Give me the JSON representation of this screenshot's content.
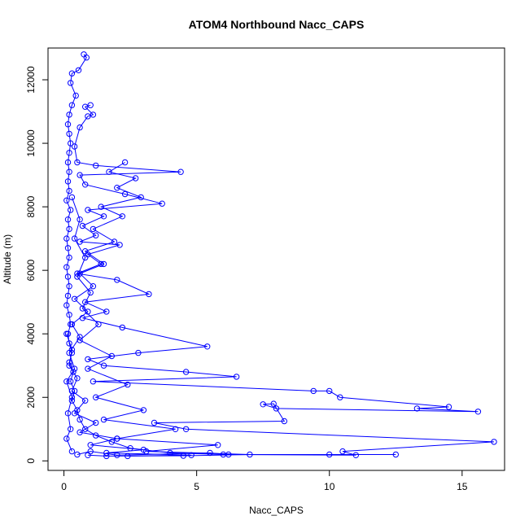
{
  "chart_data": {
    "type": "line",
    "title": "ATOM4 Northbound Nacc_CAPS",
    "xlabel": "Nacc_CAPS",
    "ylabel": "Altitude (m)",
    "xlim": [
      -0.6,
      16.6
    ],
    "ylim": [
      -300,
      13000
    ],
    "x_ticks": [
      0,
      5,
      10,
      15
    ],
    "y_ticks": [
      0,
      2000,
      4000,
      6000,
      8000,
      10000,
      12000
    ],
    "grid": false,
    "legend": "none",
    "marker": "open-circle",
    "color": "#0000ff",
    "series": [
      {
        "values": [
          [
            0.75,
            12800
          ],
          [
            0.85,
            12700
          ],
          [
            0.55,
            12300
          ],
          [
            0.3,
            12200
          ],
          [
            0.25,
            11900
          ],
          [
            0.45,
            11500
          ],
          [
            0.3,
            11200
          ],
          [
            0.2,
            10900
          ],
          [
            0.15,
            10600
          ],
          [
            0.2,
            10300
          ],
          [
            0.25,
            10000
          ],
          [
            0.2,
            9700
          ],
          [
            0.15,
            9400
          ],
          [
            0.2,
            9100
          ],
          [
            0.15,
            8800
          ],
          [
            0.2,
            8500
          ],
          [
            0.1,
            8200
          ],
          [
            0.25,
            7900
          ],
          [
            0.15,
            7600
          ],
          [
            0.2,
            7300
          ],
          [
            0.1,
            7000
          ],
          [
            0.15,
            6700
          ],
          [
            0.2,
            6400
          ],
          [
            0.1,
            6100
          ],
          [
            0.15,
            5800
          ],
          [
            0.2,
            5500
          ],
          [
            0.15,
            5200
          ],
          [
            0.1,
            4900
          ],
          [
            0.2,
            4600
          ],
          [
            0.25,
            4300
          ],
          [
            0.15,
            4000
          ],
          [
            0.2,
            3700
          ],
          [
            0.3,
            3400
          ],
          [
            0.2,
            3100
          ],
          [
            0.35,
            2800
          ],
          [
            0.25,
            2500
          ],
          [
            0.4,
            2200
          ],
          [
            0.3,
            1900
          ],
          [
            0.5,
            1600
          ],
          [
            0.6,
            1300
          ],
          [
            0.8,
            1000
          ],
          [
            1.2,
            800
          ],
          [
            1.8,
            600
          ],
          [
            2.5,
            400
          ],
          [
            4.0,
            250
          ],
          [
            6.0,
            200
          ],
          [
            10.0,
            200
          ],
          [
            12.5,
            200
          ]
        ]
      },
      {
        "values": [
          [
            1.0,
            11200
          ],
          [
            0.8,
            11150
          ],
          [
            1.1,
            10900
          ],
          [
            0.9,
            10850
          ],
          [
            0.6,
            10500
          ],
          [
            0.4,
            9900
          ],
          [
            0.5,
            9400
          ],
          [
            1.2,
            9300
          ],
          [
            4.4,
            9100
          ],
          [
            0.6,
            9000
          ],
          [
            0.8,
            8700
          ],
          [
            2.3,
            8400
          ],
          [
            3.7,
            8100
          ],
          [
            0.9,
            7900
          ],
          [
            1.5,
            7700
          ],
          [
            0.7,
            7400
          ],
          [
            1.2,
            7100
          ],
          [
            0.6,
            6900
          ],
          [
            2.1,
            6800
          ],
          [
            0.9,
            6500
          ],
          [
            1.4,
            6200
          ],
          [
            0.5,
            5900
          ],
          [
            2.0,
            5700
          ],
          [
            3.2,
            5250
          ],
          [
            0.8,
            5000
          ],
          [
            1.6,
            4700
          ],
          [
            0.7,
            4500
          ],
          [
            2.2,
            4200
          ],
          [
            5.4,
            3600
          ],
          [
            2.8,
            3400
          ],
          [
            0.9,
            3200
          ],
          [
            1.5,
            3000
          ],
          [
            4.6,
            2800
          ],
          [
            6.5,
            2650
          ],
          [
            1.1,
            2500
          ],
          [
            9.4,
            2200
          ],
          [
            10.0,
            2200
          ],
          [
            10.4,
            2000
          ],
          [
            14.5,
            1700
          ],
          [
            13.3,
            1650
          ],
          [
            15.6,
            1550
          ],
          [
            8.0,
            1650
          ],
          [
            7.5,
            1780
          ],
          [
            7.9,
            1800
          ],
          [
            8.3,
            1250
          ],
          [
            3.4,
            1200
          ],
          [
            4.6,
            1000
          ],
          [
            16.2,
            600
          ],
          [
            10.5,
            300
          ],
          [
            11.0,
            180
          ],
          [
            6.2,
            200
          ],
          [
            5.5,
            250
          ],
          [
            2.0,
            180
          ],
          [
            1.0,
            300
          ],
          [
            0.5,
            200
          ]
        ]
      },
      {
        "values": [
          [
            0.3,
            8300
          ],
          [
            0.6,
            7600
          ],
          [
            0.4,
            7000
          ],
          [
            0.8,
            6400
          ],
          [
            0.5,
            5800
          ],
          [
            1.0,
            5300
          ],
          [
            0.7,
            4800
          ],
          [
            1.3,
            4300
          ],
          [
            0.6,
            3800
          ],
          [
            1.8,
            3300
          ],
          [
            0.9,
            2900
          ],
          [
            2.4,
            2400
          ],
          [
            1.2,
            2000
          ],
          [
            3.0,
            1600
          ],
          [
            1.5,
            1300
          ],
          [
            4.2,
            1000
          ],
          [
            2.0,
            700
          ],
          [
            5.8,
            500
          ],
          [
            3.1,
            300
          ],
          [
            7.0,
            200
          ],
          [
            4.5,
            160
          ],
          [
            1.6,
            150
          ],
          [
            0.9,
            180
          ]
        ]
      },
      {
        "values": [
          [
            0.1,
            4000
          ],
          [
            0.3,
            3500
          ],
          [
            0.2,
            3000
          ],
          [
            0.5,
            2600
          ],
          [
            0.3,
            2200
          ],
          [
            0.8,
            1900
          ],
          [
            0.4,
            1500
          ],
          [
            1.2,
            1200
          ],
          [
            0.6,
            900
          ],
          [
            2.0,
            700
          ],
          [
            1.0,
            500
          ],
          [
            3.0,
            350
          ],
          [
            1.6,
            250
          ],
          [
            4.8,
            180
          ],
          [
            2.4,
            150
          ]
        ]
      },
      {
        "values": [
          [
            2.3,
            9400
          ],
          [
            1.7,
            9100
          ],
          [
            2.7,
            8900
          ],
          [
            2.0,
            8600
          ],
          [
            2.9,
            8300
          ],
          [
            1.4,
            8000
          ],
          [
            2.2,
            7700
          ],
          [
            1.1,
            7300
          ],
          [
            1.9,
            6900
          ],
          [
            0.8,
            6600
          ],
          [
            1.5,
            6200
          ],
          [
            0.6,
            5900
          ],
          [
            1.1,
            5500
          ],
          [
            0.4,
            5100
          ],
          [
            0.9,
            4700
          ],
          [
            0.3,
            4300
          ],
          [
            0.6,
            3900
          ],
          [
            0.2,
            3400
          ],
          [
            0.4,
            2900
          ],
          [
            0.1,
            2500
          ],
          [
            0.3,
            2000
          ],
          [
            0.15,
            1500
          ],
          [
            0.25,
            1000
          ],
          [
            0.1,
            700
          ],
          [
            0.3,
            300
          ]
        ]
      }
    ]
  }
}
